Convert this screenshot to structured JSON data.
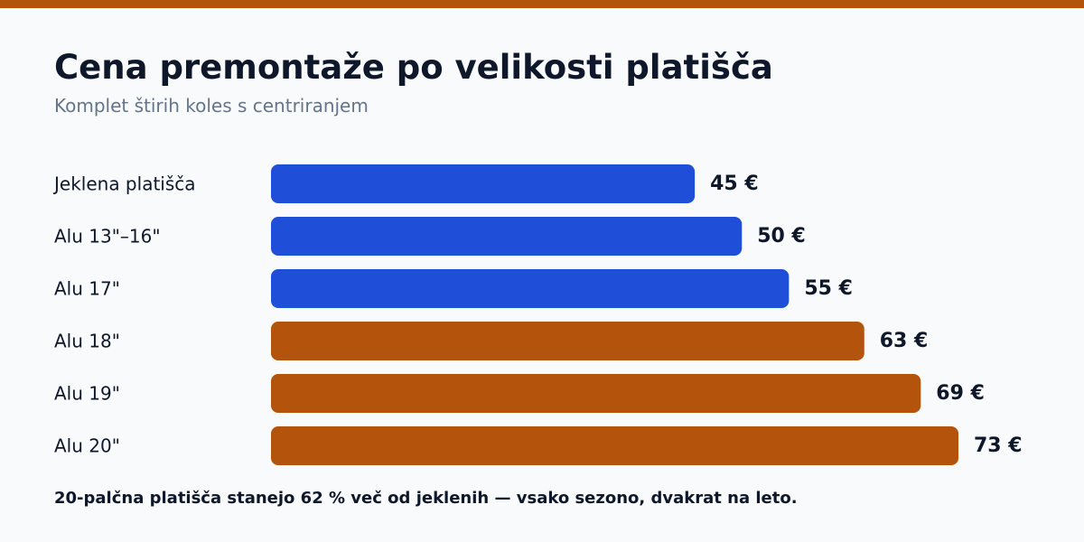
{
  "header": {
    "title": "Cena premontaže po velikosti platišča",
    "subtitle": "Komplet štirih koles s centriranjem"
  },
  "footnote": "20-palčna platišča stanejo 62 % več od jeklenih — vsako sezono, dvakrat na leto.",
  "colors": {
    "accent": "#b4530c",
    "blue": "#1f4fd8",
    "title": "#0f172a",
    "subtitle": "#64748b",
    "background": "#f8fafc"
  },
  "chart_data": {
    "type": "bar",
    "orientation": "horizontal",
    "title": "Cena premontaže po velikosti platišča",
    "subtitle": "Komplet štirih koles s centriranjem",
    "categories": [
      "Jeklena platišča",
      "Alu 13\"–16\"",
      "Alu 17\"",
      "Alu 18\"",
      "Alu 19\"",
      "Alu 20\""
    ],
    "values": [
      45,
      50,
      55,
      63,
      69,
      73
    ],
    "value_labels": [
      "45 €",
      "50 €",
      "55 €",
      "63 €",
      "69 €",
      "73 €"
    ],
    "bar_colors": [
      "#1f4fd8",
      "#1f4fd8",
      "#1f4fd8",
      "#b4530c",
      "#b4530c",
      "#b4530c"
    ],
    "unit": "€",
    "xlim": [
      0,
      73
    ],
    "grid": false,
    "legend": "none"
  }
}
